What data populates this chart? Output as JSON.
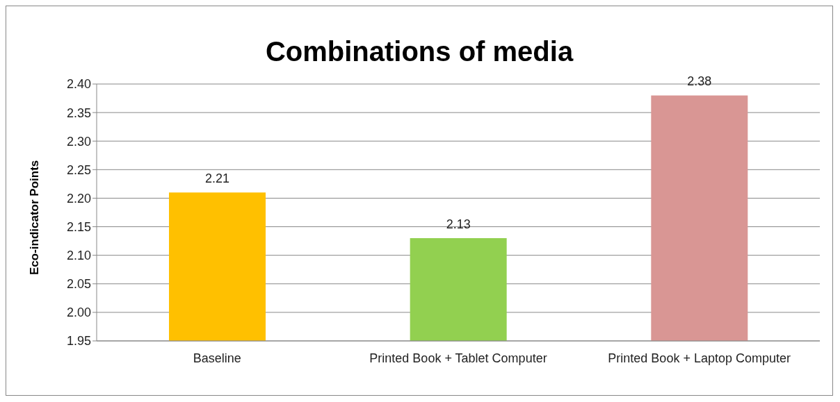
{
  "chart_data": {
    "type": "bar",
    "title": "Combinations of media",
    "ylabel": "Eco-indicator Points",
    "categories": [
      "Baseline",
      "Printed Book + Tablet Computer",
      "Printed Book + Laptop Computer"
    ],
    "values": [
      2.21,
      2.13,
      2.38
    ],
    "colors": [
      "#ffc000",
      "#92d050",
      "#d99694"
    ],
    "ylim": [
      1.95,
      2.4
    ],
    "yticks": [
      {
        "value": 1.95,
        "label": "1.95"
      },
      {
        "value": 2.0,
        "label": "2.00"
      },
      {
        "value": 2.05,
        "label": "2.05"
      },
      {
        "value": 2.1,
        "label": "2.10"
      },
      {
        "value": 2.15,
        "label": "2.15"
      },
      {
        "value": 2.2,
        "label": "2.20"
      },
      {
        "value": 2.25,
        "label": "2.25"
      },
      {
        "value": 2.3,
        "label": "2.30"
      },
      {
        "value": 2.35,
        "label": "2.35"
      },
      {
        "value": 2.4,
        "label": "2.40"
      }
    ],
    "grid": "y",
    "data_labels": true,
    "legend": false
  }
}
